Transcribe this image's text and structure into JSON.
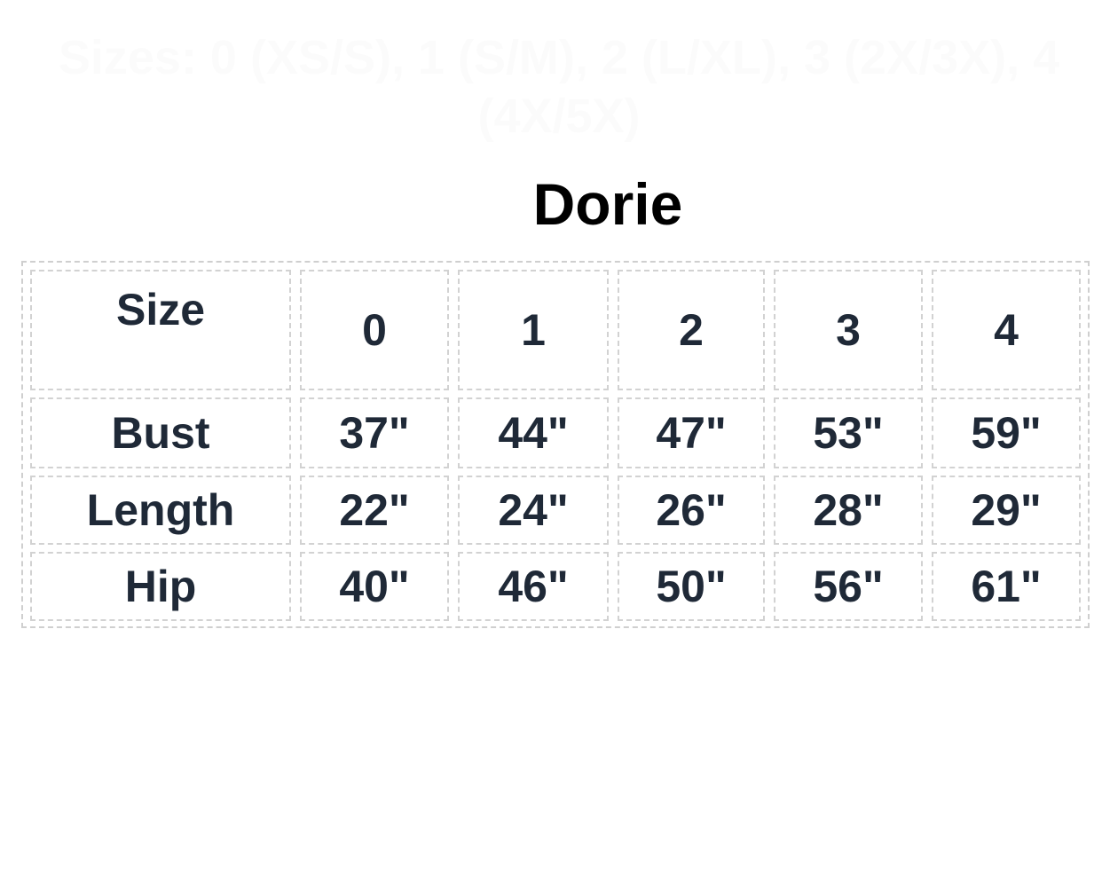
{
  "faint_header": "Sizes: 0 (XS/S), 1 (S/M), 2 (L/XL), 3 (2X/3X), 4 (4X/5X)",
  "title": "Dorie",
  "table": {
    "header": [
      "Size",
      "0",
      "1",
      "2",
      "3",
      "4"
    ],
    "rows": [
      [
        "Bust",
        "37\"",
        "44\"",
        "47\"",
        "53\"",
        "59\""
      ],
      [
        "Length",
        "22\"",
        "24\"",
        "26\"",
        "28\"",
        "29\""
      ],
      [
        "Hip",
        "40\"",
        "46\"",
        "50\"",
        "56\"",
        "61\""
      ]
    ]
  }
}
